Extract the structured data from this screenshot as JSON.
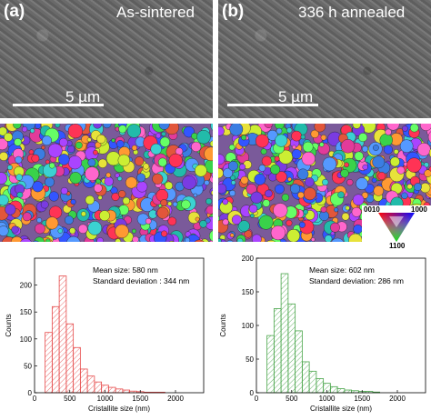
{
  "panels": [
    {
      "label": "(a)",
      "condition": "As-sintered",
      "scale": "5 µm"
    },
    {
      "label": "(b)",
      "condition": "336 h annealed",
      "scale": "5 µm"
    }
  ],
  "ipf_key": {
    "corner_top_left": "0010",
    "corner_top_right": "1000",
    "corner_bottom": "1100"
  },
  "chart_data": [
    {
      "type": "bar",
      "color": "#e64b4b",
      "hatch": "red diagonal",
      "bin_edges": [
        0,
        200,
        300,
        400,
        500,
        600,
        700,
        800,
        900,
        1000,
        1100,
        1200,
        1300,
        1400,
        1500,
        1600,
        1700,
        1800,
        1900,
        2000
      ],
      "bins": [
        {
          "x0": 150,
          "x1": 250,
          "y": 112
        },
        {
          "x0": 250,
          "x1": 350,
          "y": 160
        },
        {
          "x0": 350,
          "x1": 450,
          "y": 217
        },
        {
          "x0": 450,
          "x1": 550,
          "y": 128
        },
        {
          "x0": 550,
          "x1": 650,
          "y": 84
        },
        {
          "x0": 650,
          "x1": 750,
          "y": 44
        },
        {
          "x0": 750,
          "x1": 850,
          "y": 31
        },
        {
          "x0": 850,
          "x1": 950,
          "y": 20
        },
        {
          "x0": 950,
          "x1": 1050,
          "y": 14
        },
        {
          "x0": 1050,
          "x1": 1150,
          "y": 10
        },
        {
          "x0": 1150,
          "x1": 1250,
          "y": 7
        },
        {
          "x0": 1250,
          "x1": 1350,
          "y": 5
        },
        {
          "x0": 1350,
          "x1": 1450,
          "y": 3
        },
        {
          "x0": 1450,
          "x1": 1550,
          "y": 2
        },
        {
          "x0": 1550,
          "x1": 1650,
          "y": 1
        },
        {
          "x0": 1650,
          "x1": 1750,
          "y": 1
        },
        {
          "x0": 1750,
          "x1": 1850,
          "y": 1
        }
      ],
      "xlim": [
        0,
        2400
      ],
      "ylim": [
        0,
        250
      ],
      "xticks": [
        0,
        500,
        1000,
        1500,
        2000
      ],
      "yticks": [
        0,
        50,
        100,
        150,
        200
      ],
      "xlabel": "Cristallite size (nm)",
      "ylabel": "Counts",
      "annotation": [
        "Mean size: 580 nm",
        "Standard deviation : 344 nm"
      ]
    },
    {
      "type": "bar",
      "color": "#49a54a",
      "hatch": "green diagonal",
      "bins": [
        {
          "x0": 150,
          "x1": 250,
          "y": 85
        },
        {
          "x0": 250,
          "x1": 350,
          "y": 125
        },
        {
          "x0": 350,
          "x1": 450,
          "y": 177
        },
        {
          "x0": 450,
          "x1": 550,
          "y": 132
        },
        {
          "x0": 550,
          "x1": 650,
          "y": 92
        },
        {
          "x0": 650,
          "x1": 750,
          "y": 46
        },
        {
          "x0": 750,
          "x1": 850,
          "y": 32
        },
        {
          "x0": 850,
          "x1": 950,
          "y": 21
        },
        {
          "x0": 950,
          "x1": 1050,
          "y": 14
        },
        {
          "x0": 1050,
          "x1": 1150,
          "y": 9
        },
        {
          "x0": 1150,
          "x1": 1250,
          "y": 6
        },
        {
          "x0": 1250,
          "x1": 1350,
          "y": 4
        },
        {
          "x0": 1350,
          "x1": 1450,
          "y": 3
        },
        {
          "x0": 1450,
          "x1": 1550,
          "y": 2
        },
        {
          "x0": 1550,
          "x1": 1650,
          "y": 2
        },
        {
          "x0": 1650,
          "x1": 1750,
          "y": 1
        }
      ],
      "xlim": [
        0,
        2400
      ],
      "ylim": [
        0,
        200
      ],
      "xticks": [
        0,
        500,
        1000,
        1500,
        2000
      ],
      "yticks": [
        0,
        50,
        100,
        150,
        200
      ],
      "xlabel": "Cristallite size (nm)",
      "ylabel": "Counts",
      "annotation": [
        "Mean size: 602 nm",
        "Standard deviation: 286 nm"
      ]
    }
  ]
}
